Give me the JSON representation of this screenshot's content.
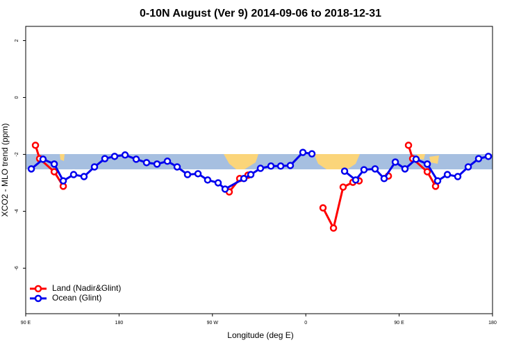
{
  "chart_data": {
    "type": "line",
    "title": "0-10N August (Ver 9)   2014-09-06 to 2018-12-31",
    "x_label": "Longitude (deg E)",
    "y_label": "XCO2 - MLO trend (ppm)",
    "xlim": [
      90,
      540
    ],
    "ylim": [
      -7.6,
      2.5
    ],
    "xticks": [
      {
        "value": 90,
        "label": "90 E"
      },
      180,
      {
        "value": 270,
        "label": "90 W"
      },
      {
        "value": 360,
        "label": "0"
      },
      {
        "value": 450,
        "label": "90 E"
      },
      {
        "value": 540,
        "label": "180"
      }
    ],
    "yticks": [
      2,
      0,
      -2,
      -4,
      -6
    ],
    "legend": "bottom-left",
    "series": [
      {
        "name": "Land (Nadir&Glint)",
        "color": "#ff0000",
        "x": [
          99.4,
          103.4,
          117.5,
          126.2,
          null,
          286.2,
          296.3,
          304.3,
          null,
          376.6,
          386.7,
          396.0,
          405.4,
          411.4,
          null,
          439.6,
          null,
          459.0,
          463.0,
          477.1,
          485.1
        ],
        "values": [
          -1.68,
          -2.15,
          -2.61,
          -3.12,
          null,
          -3.32,
          -2.85,
          -2.73,
          null,
          -3.88,
          -4.59,
          -3.15,
          -2.98,
          -2.93,
          null,
          -2.76,
          null,
          -1.68,
          -2.15,
          -2.61,
          -3.12
        ]
      },
      {
        "name": "Ocean (Glint)",
        "color": "#0000ee",
        "x": [
          95.4,
          106.7,
          117.5,
          126.2,
          136.2,
          146.2,
          156.3,
          166.3,
          175.7,
          185.8,
          196.5,
          206.5,
          216.6,
          226.6,
          236.0,
          246.0,
          256.1,
          265.4,
          275.5,
          282.2,
          300.3,
          307.0,
          316.3,
          326.4,
          335.8,
          345.1,
          357.2,
          365.9,
          null,
          397.4,
          408.1,
          416.1,
          426.8,
          435.5,
          446.3,
          455.6,
          466.3,
          477.1,
          487.1,
          496.5,
          506.5,
          516.6,
          526.6,
          536.0
        ],
        "values": [
          -2.51,
          -2.17,
          -2.34,
          -2.93,
          -2.71,
          -2.78,
          -2.44,
          -2.15,
          -2.07,
          -2.02,
          -2.17,
          -2.29,
          -2.34,
          -2.24,
          -2.44,
          -2.71,
          -2.68,
          -2.9,
          -3.0,
          -3.22,
          -2.85,
          -2.71,
          -2.49,
          -2.41,
          -2.41,
          -2.39,
          -1.93,
          -1.98,
          null,
          -2.59,
          -2.9,
          -2.54,
          -2.51,
          -2.85,
          -2.27,
          -2.51,
          -2.17,
          -2.34,
          -2.93,
          -2.71,
          -2.78,
          -2.44,
          -2.15,
          -2.07
        ]
      }
    ]
  }
}
